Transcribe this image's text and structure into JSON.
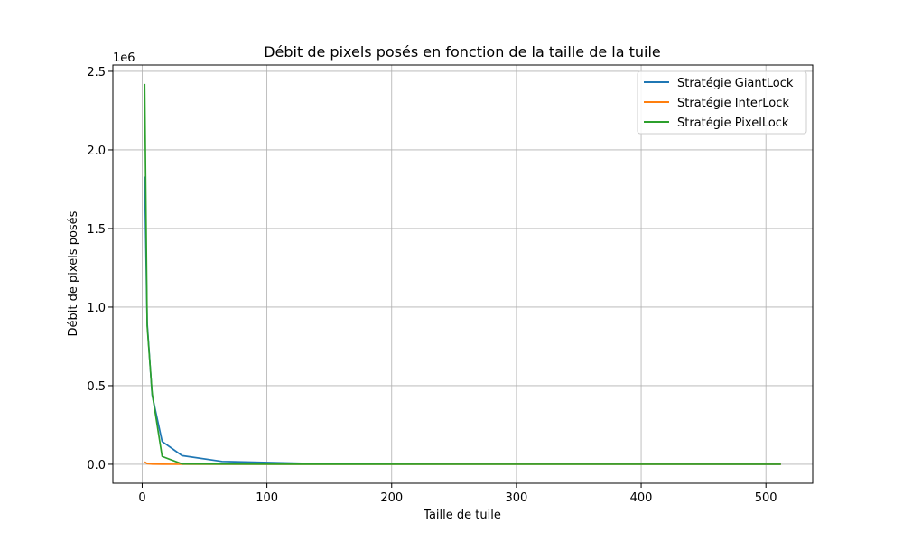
{
  "chart_data": {
    "type": "line",
    "title": "Débit de pixels posés en fonction de la taille de la tuile",
    "xlabel": "Taille de tuile",
    "ylabel": "Débit de pixels posés",
    "y_offset_label": "1e6",
    "xlim": [
      -23.5,
      537.5
    ],
    "ylim": [
      -121000,
      2540000
    ],
    "x_ticks": [
      0,
      100,
      200,
      300,
      400,
      500
    ],
    "x_tick_labels": [
      "0",
      "100",
      "200",
      "300",
      "400",
      "500"
    ],
    "y_ticks": [
      0,
      500000,
      1000000,
      1500000,
      2000000,
      2500000
    ],
    "y_tick_labels": [
      "0.0",
      "0.5",
      "1.0",
      "1.5",
      "2.0",
      "2.5"
    ],
    "grid": true,
    "legend_position": "top-right",
    "x": [
      2,
      4,
      8,
      16,
      32,
      64,
      128,
      256,
      512
    ],
    "series": [
      {
        "name": "Stratégie GiantLock",
        "color": "#1f77b4",
        "values": [
          1830000,
          900000,
          440000,
          145000,
          55000,
          18000,
          6000,
          2000,
          500
        ]
      },
      {
        "name": "Stratégie InterLock",
        "color": "#ff7f0e",
        "values": [
          15000,
          4000,
          1000,
          300,
          100,
          50,
          20,
          10,
          5
        ]
      },
      {
        "name": "Stratégie PixelLock",
        "color": "#2ca02c",
        "values": [
          2420000,
          880000,
          450000,
          50000,
          2000,
          800,
          300,
          100,
          50
        ]
      }
    ]
  }
}
